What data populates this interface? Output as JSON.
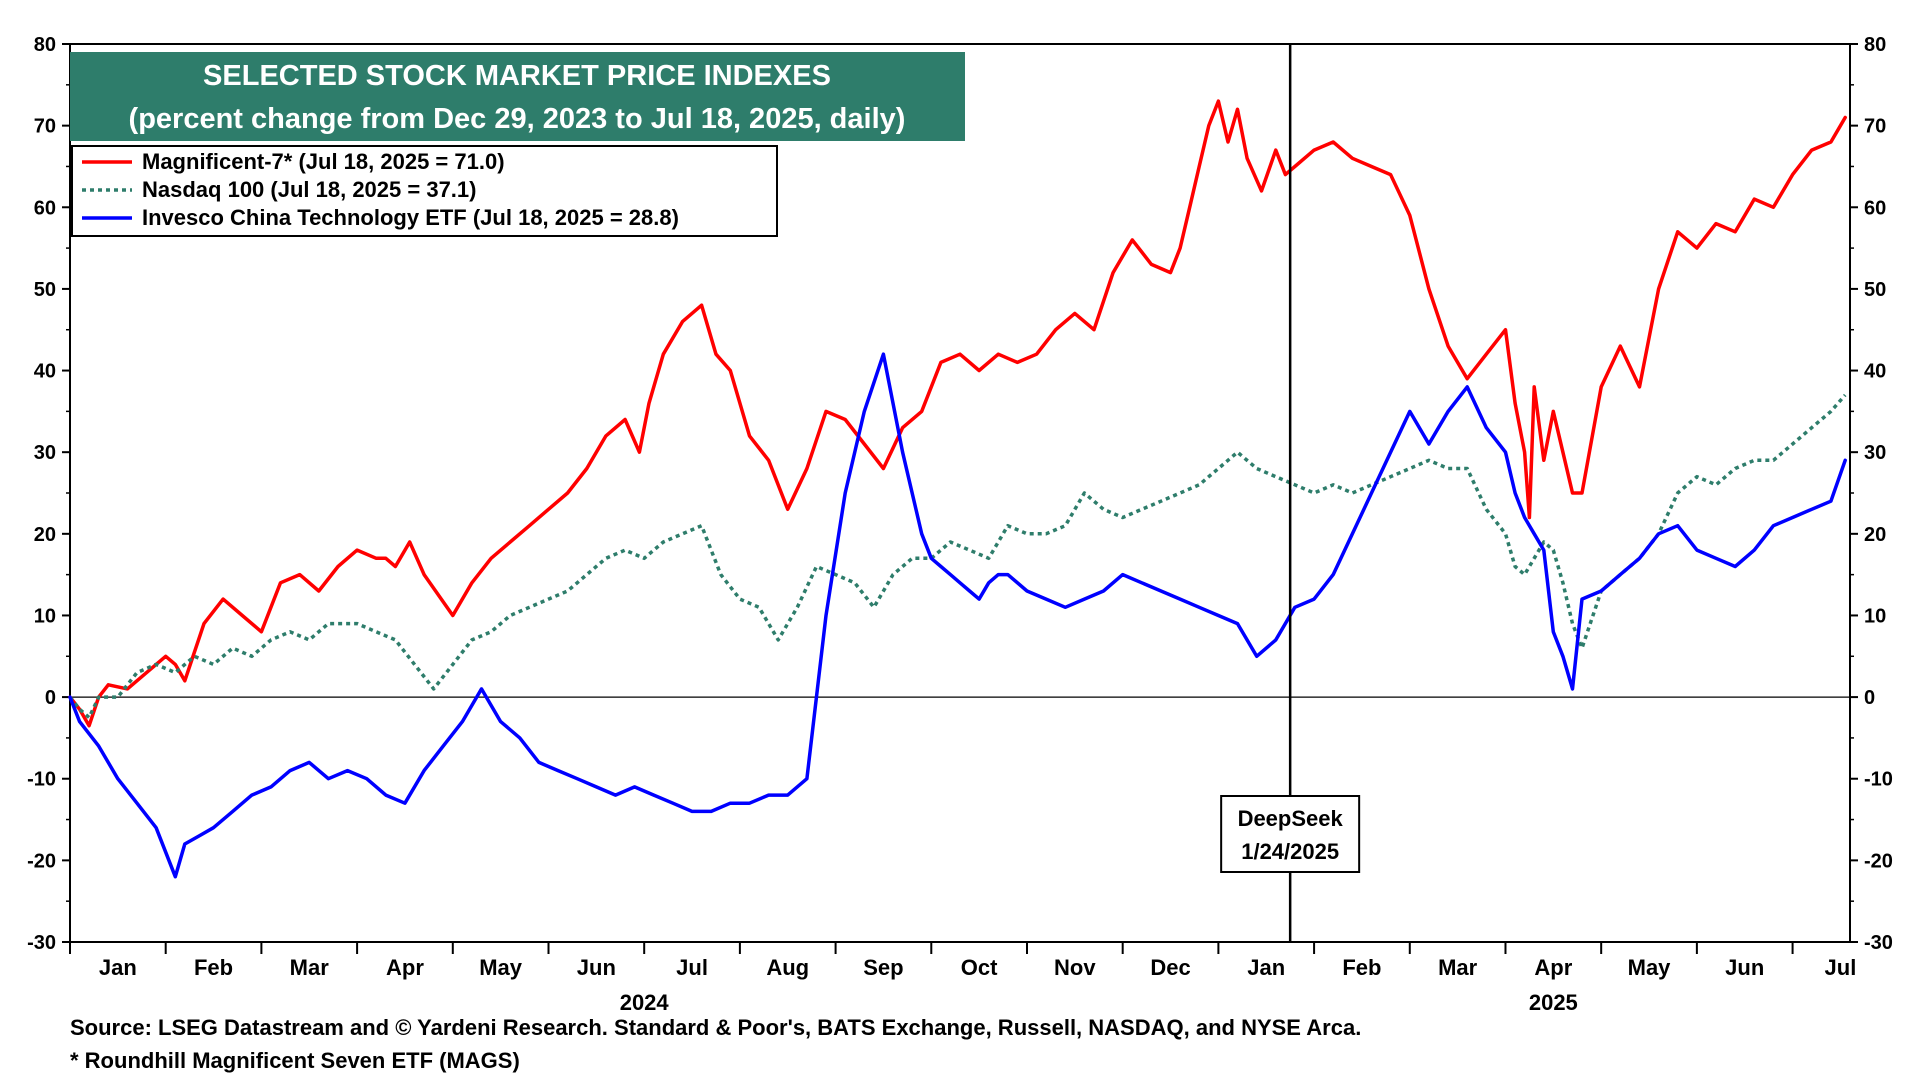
{
  "chart_data": {
    "type": "line",
    "title": "SELECTED STOCK MARKET PRICE INDEXES",
    "subtitle": "(percent change from Dec 29, 2023 to Jul 18, 2025, daily)",
    "ylim": [
      -30,
      80
    ],
    "yticks": [
      "80",
      "70",
      "60",
      "50",
      "40",
      "30",
      "20",
      "10",
      "0",
      "-10",
      "-20",
      "-30"
    ],
    "xlim": [
      0,
      18.6
    ],
    "months": [
      "Jan",
      "Feb",
      "Mar",
      "Apr",
      "May",
      "Jun",
      "Jul",
      "Aug",
      "Sep",
      "Oct",
      "Nov",
      "Dec",
      "Jan",
      "Feb",
      "Mar",
      "Apr",
      "May",
      "Jun",
      "Jul"
    ],
    "years": [
      "2024",
      "2025"
    ],
    "grid": false,
    "legend_position": "top-left",
    "series": [
      {
        "name": "Magnificent-7* (Jul 18, 2025 = 71.0)",
        "color": "#ff0000",
        "style": "solid",
        "x": [
          0,
          0.1,
          0.2,
          0.3,
          0.4,
          0.6,
          0.8,
          1.0,
          1.1,
          1.2,
          1.4,
          1.6,
          1.8,
          2.0,
          2.2,
          2.4,
          2.6,
          2.8,
          3.0,
          3.2,
          3.3,
          3.4,
          3.55,
          3.7,
          4.0,
          4.2,
          4.4,
          4.6,
          4.8,
          5.0,
          5.2,
          5.4,
          5.6,
          5.8,
          5.95,
          6.05,
          6.2,
          6.4,
          6.6,
          6.75,
          6.9,
          7.1,
          7.3,
          7.5,
          7.7,
          7.9,
          8.1,
          8.3,
          8.5,
          8.7,
          8.9,
          9.1,
          9.3,
          9.5,
          9.7,
          9.9,
          10.1,
          10.3,
          10.5,
          10.7,
          10.9,
          11.1,
          11.3,
          11.5,
          11.6,
          11.7,
          11.8,
          11.9,
          12.0,
          12.1,
          12.2,
          12.3,
          12.45,
          12.6,
          12.7,
          12.8,
          13.0,
          13.2,
          13.4,
          13.6,
          13.8,
          14.0,
          14.2,
          14.4,
          14.6,
          14.8,
          15.0,
          15.1,
          15.2,
          15.25,
          15.3,
          15.4,
          15.5,
          15.6,
          15.7,
          15.8,
          16.0,
          16.2,
          16.4,
          16.6,
          16.8,
          17.0,
          17.2,
          17.4,
          17.6,
          17.8,
          18.0,
          18.2,
          18.4,
          18.55
        ],
        "y": [
          0,
          -1.5,
          -3.5,
          0,
          1.5,
          1,
          3,
          5,
          4,
          2,
          9,
          12,
          10,
          8,
          14,
          15,
          13,
          16,
          18,
          17,
          17,
          16,
          19,
          15,
          10,
          14,
          17,
          19,
          21,
          23,
          25,
          28,
          32,
          34,
          30,
          36,
          42,
          46,
          48,
          42,
          40,
          32,
          29,
          23,
          28,
          35,
          34,
          31,
          28,
          33,
          35,
          41,
          42,
          40,
          42,
          41,
          42,
          45,
          47,
          45,
          52,
          56,
          53,
          52,
          55,
          60,
          65,
          70,
          73,
          68,
          72,
          66,
          62,
          67,
          64,
          65,
          67,
          68,
          66,
          65,
          64,
          59,
          50,
          43,
          39,
          42,
          45,
          36,
          30,
          22,
          38,
          29,
          35,
          30,
          25,
          25,
          38,
          43,
          38,
          50,
          57,
          55,
          58,
          57,
          61,
          60,
          64,
          67,
          68,
          71
        ]
      },
      {
        "name": "Nasdaq 100 (Jul 18, 2025 = 37.1)",
        "color": "#2e7d6b",
        "style": "dotted",
        "x": [
          0,
          0.1,
          0.2,
          0.3,
          0.5,
          0.7,
          0.9,
          1.1,
          1.3,
          1.5,
          1.7,
          1.9,
          2.1,
          2.3,
          2.5,
          2.7,
          3.0,
          3.2,
          3.4,
          3.6,
          3.8,
          4.0,
          4.2,
          4.4,
          4.6,
          4.8,
          5.0,
          5.2,
          5.4,
          5.6,
          5.8,
          6.0,
          6.2,
          6.4,
          6.6,
          6.8,
          7.0,
          7.2,
          7.4,
          7.6,
          7.8,
          8.0,
          8.2,
          8.4,
          8.6,
          8.8,
          9.0,
          9.2,
          9.4,
          9.6,
          9.8,
          10.0,
          10.2,
          10.4,
          10.6,
          10.8,
          11.0,
          11.2,
          11.4,
          11.6,
          11.8,
          12.0,
          12.2,
          12.4,
          12.6,
          12.8,
          13.0,
          13.2,
          13.4,
          13.6,
          13.8,
          14.0,
          14.2,
          14.4,
          14.6,
          14.8,
          15.0,
          15.1,
          15.2,
          15.3,
          15.4,
          15.5,
          15.6,
          15.7,
          15.8,
          16.0,
          16.2,
          16.4,
          16.6,
          16.8,
          17.0,
          17.2,
          17.4,
          17.6,
          17.8,
          18.0,
          18.2,
          18.4,
          18.55
        ],
        "y": [
          0,
          -1.5,
          -2.5,
          0,
          0,
          3,
          4,
          3,
          5,
          4,
          6,
          5,
          7,
          8,
          7,
          9,
          9,
          8,
          7,
          4,
          1,
          4,
          7,
          8,
          10,
          11,
          12,
          13,
          15,
          17,
          18,
          17,
          19,
          20,
          21,
          15,
          12,
          11,
          7,
          11,
          16,
          15,
          14,
          11,
          15,
          17,
          17,
          19,
          18,
          17,
          21,
          20,
          20,
          21,
          25,
          23,
          22,
          23,
          24,
          25,
          26,
          28,
          30,
          28,
          27,
          26,
          25,
          26,
          25,
          26,
          27,
          28,
          29,
          28,
          28,
          23,
          20,
          16,
          15,
          17,
          19,
          18,
          14,
          9,
          6,
          13,
          15,
          17,
          20,
          25,
          27,
          26,
          28,
          29,
          29,
          31,
          33,
          35,
          37
        ]
      },
      {
        "name": "Invesco China Technology ETF (Jul 18, 2025 = 28.8)",
        "color": "#0000ff",
        "style": "solid",
        "x": [
          0,
          0.1,
          0.3,
          0.5,
          0.7,
          0.9,
          1.1,
          1.2,
          1.35,
          1.5,
          1.7,
          1.9,
          2.1,
          2.3,
          2.5,
          2.7,
          2.9,
          3.1,
          3.3,
          3.5,
          3.7,
          3.9,
          4.1,
          4.3,
          4.5,
          4.7,
          4.9,
          5.1,
          5.3,
          5.5,
          5.7,
          5.9,
          6.1,
          6.3,
          6.5,
          6.7,
          6.9,
          7.1,
          7.3,
          7.5,
          7.7,
          7.9,
          8.1,
          8.3,
          8.5,
          8.7,
          8.9,
          9.0,
          9.1,
          9.2,
          9.3,
          9.4,
          9.5,
          9.6,
          9.7,
          9.8,
          10.0,
          10.2,
          10.4,
          10.6,
          10.8,
          11.0,
          11.2,
          11.4,
          11.6,
          11.8,
          12.0,
          12.2,
          12.4,
          12.6,
          12.8,
          13.0,
          13.2,
          13.4,
          13.6,
          13.8,
          14.0,
          14.2,
          14.4,
          14.6,
          14.8,
          15.0,
          15.1,
          15.2,
          15.3,
          15.4,
          15.5,
          15.6,
          15.7,
          15.8,
          16.0,
          16.2,
          16.4,
          16.6,
          16.8,
          17.0,
          17.2,
          17.4,
          17.6,
          17.8,
          18.0,
          18.2,
          18.4,
          18.55
        ],
        "y": [
          0,
          -3,
          -6,
          -10,
          -13,
          -16,
          -22,
          -18,
          -17,
          -16,
          -14,
          -12,
          -11,
          -9,
          -8,
          -10,
          -9,
          -10,
          -12,
          -13,
          -9,
          -6,
          -3,
          1,
          -3,
          -5,
          -8,
          -9,
          -10,
          -11,
          -12,
          -11,
          -12,
          -13,
          -14,
          -14,
          -13,
          -13,
          -12,
          -12,
          -10,
          10,
          25,
          35,
          42,
          30,
          20,
          17,
          16,
          15,
          14,
          13,
          12,
          14,
          15,
          15,
          13,
          12,
          11,
          12,
          13,
          15,
          14,
          13,
          12,
          11,
          10,
          9,
          5,
          7,
          11,
          12,
          15,
          20,
          25,
          30,
          35,
          31,
          35,
          38,
          33,
          30,
          25,
          22,
          20,
          18,
          8,
          5,
          1,
          12,
          13,
          15,
          17,
          20,
          21,
          18,
          17,
          16,
          18,
          21,
          22,
          23,
          24,
          29
        ]
      }
    ],
    "annotation": {
      "line1": "DeepSeek",
      "line2": "1/24/2025",
      "x": 12.75
    },
    "footnotes": [
      "Source: LSEG Datastream and © Yardeni Research. Standard & Poor's, BATS Exchange, Russell, NASDAQ, and NYSE Arca.",
      "* Roundhill Magnificent Seven ETF (MAGS)"
    ]
  },
  "colors": {
    "title_bg": "#2e7d6b",
    "title_fg": "#ffffff",
    "frame": "#000000"
  }
}
